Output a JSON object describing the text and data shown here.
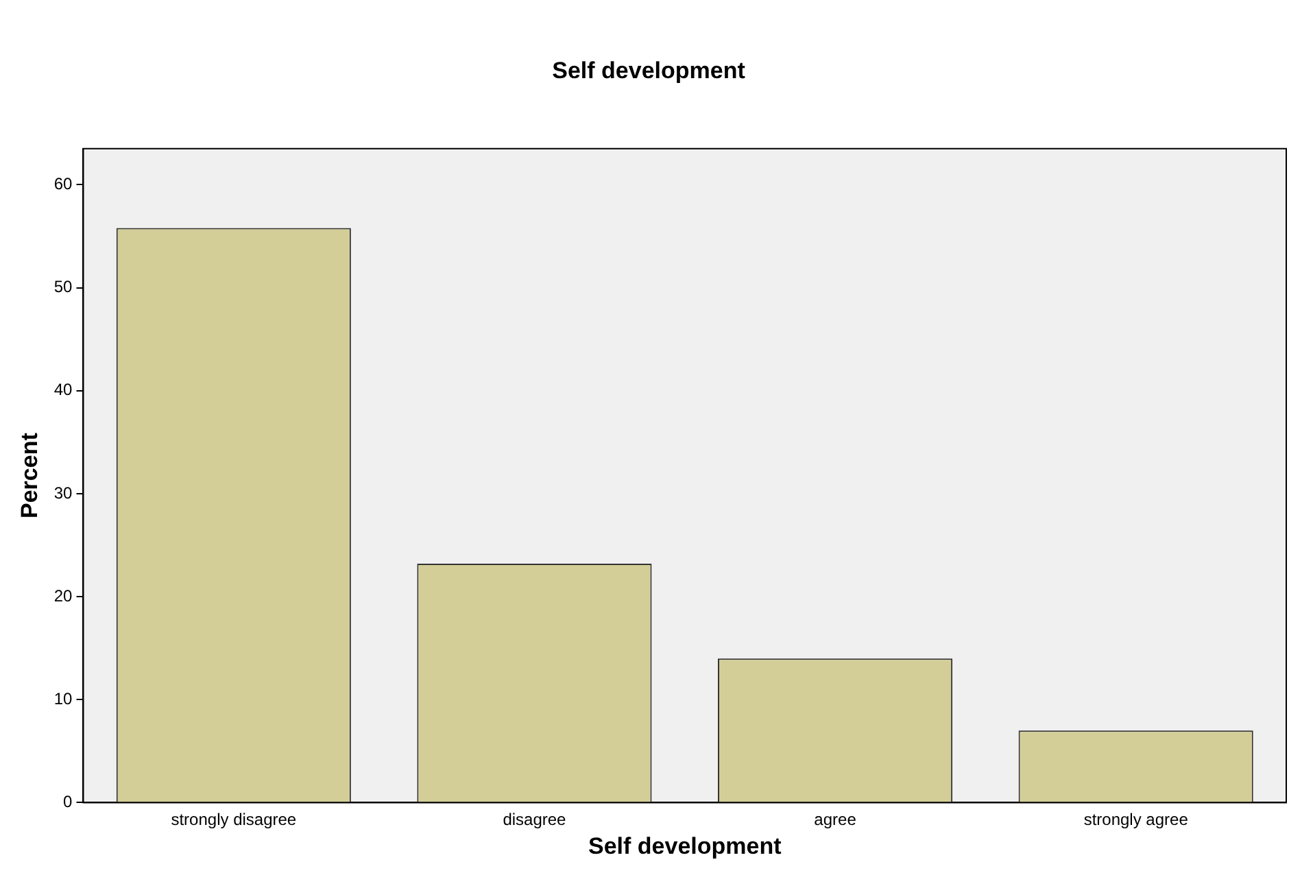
{
  "chart_data": {
    "type": "bar",
    "title": "Self development",
    "xlabel": "Self development",
    "ylabel": "Percent",
    "categories": [
      "strongly disagree",
      "disagree",
      "agree",
      "strongly agree"
    ],
    "values": [
      55.8,
      23.2,
      14.0,
      7.0
    ],
    "color": "#d3ce97",
    "ylim": [
      0,
      63.5
    ],
    "yticks": [
      0,
      10,
      20,
      30,
      40,
      50,
      60
    ],
    "grid": false
  }
}
